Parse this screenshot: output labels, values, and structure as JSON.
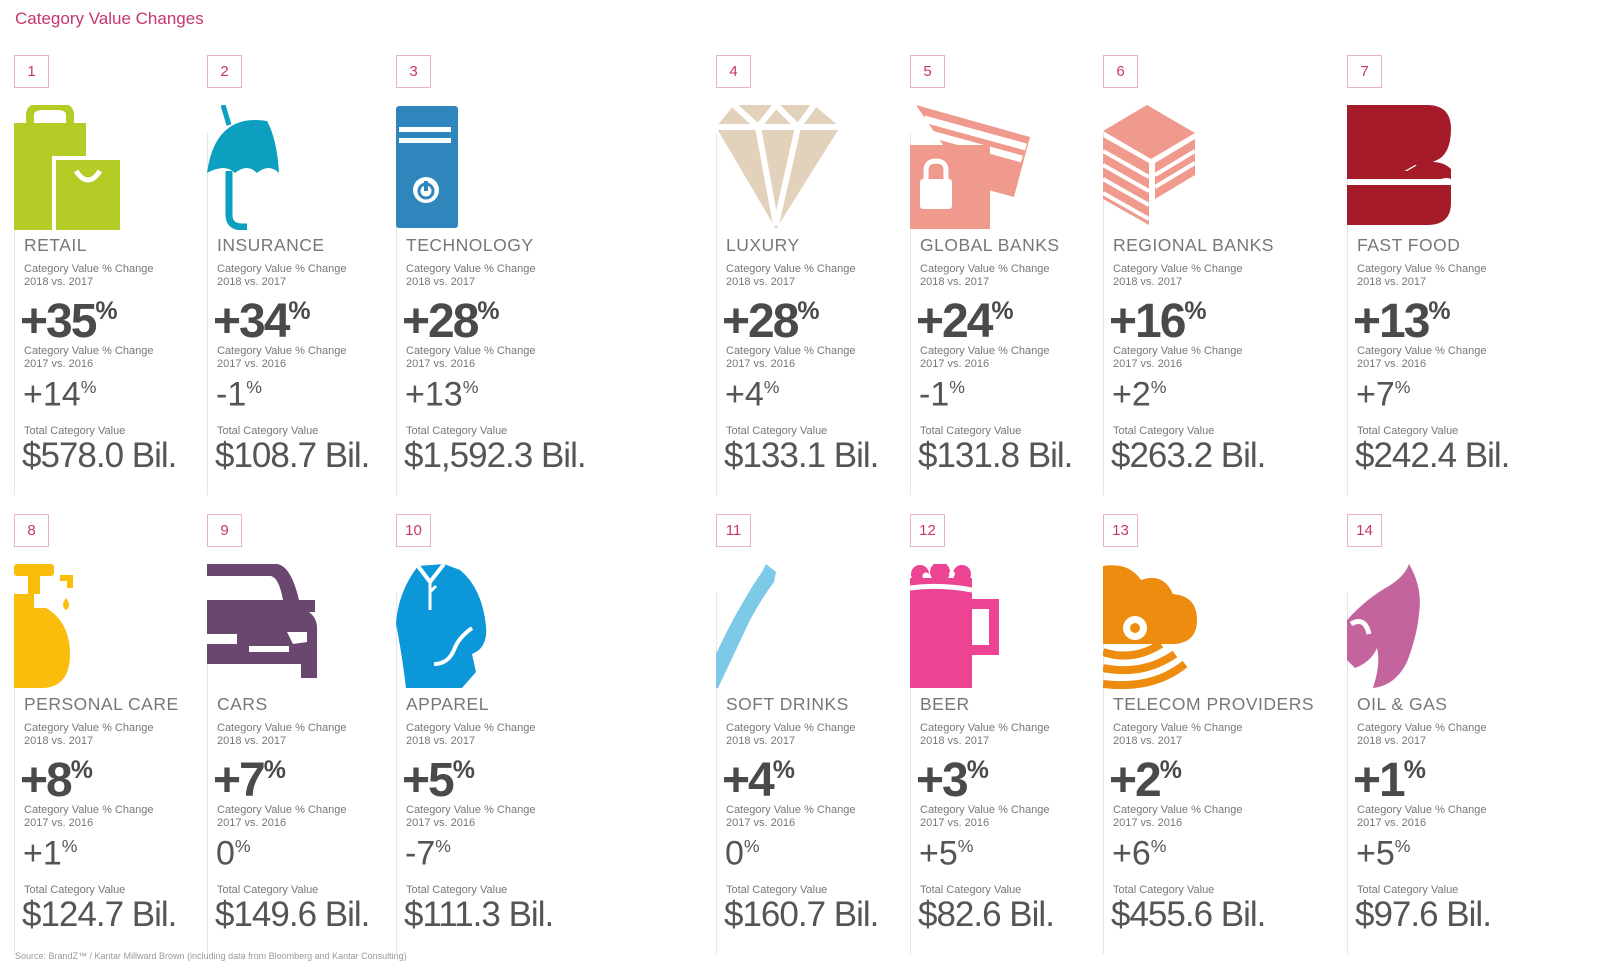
{
  "title": "Category Value Changes",
  "source": "Source: BrandZ™ / Kantar Millward Brown  (including data from Bloomberg and Kantar Consulting)",
  "labels": {
    "change_a_line1": "Category Value % Change",
    "change_a_line2": "2018 vs. 2017",
    "change_b_line1": "Category Value % Change",
    "change_b_line2": "2017 vs. 2016",
    "total": "Total Category Value",
    "percent_sign": "%"
  },
  "categories": [
    {
      "rank": "1",
      "name": "RETAIL",
      "change_2018": "+35",
      "change_2017": "+14",
      "total": "$578.0 Bil.",
      "icon": "shopping-bags-icon",
      "color": "#b5cc26"
    },
    {
      "rank": "2",
      "name": "INSURANCE",
      "change_2018": "+34",
      "change_2017": "-1",
      "total": "$108.7 Bil.",
      "icon": "umbrella-icon",
      "color": "#0d9fbf"
    },
    {
      "rank": "3",
      "name": "TECHNOLOGY",
      "change_2018": "+28",
      "change_2017": "+13",
      "total": "$1,592.3 Bil.",
      "icon": "computer-tower-icon",
      "color": "#2e86bd"
    },
    {
      "rank": "4",
      "name": "LUXURY",
      "change_2018": "+28",
      "change_2017": "+4",
      "total": "$133.1 Bil.",
      "icon": "diamond-icon",
      "color": "#e2d2bc"
    },
    {
      "rank": "5",
      "name": "GLOBAL BANKS",
      "change_2018": "+24",
      "change_2017": "-1",
      "total": "$131.8 Bil.",
      "icon": "card-lock-icon",
      "color": "#ef9a8c"
    },
    {
      "rank": "6",
      "name": "REGIONAL BANKS",
      "change_2018": "+16",
      "change_2017": "+2",
      "total": "$263.2 Bil.",
      "icon": "bank-building-icon",
      "color": "#ef9a8c"
    },
    {
      "rank": "7",
      "name": "FAST FOOD",
      "change_2018": "+13",
      "change_2017": "+7",
      "total": "$242.4 Bil.",
      "icon": "burger-icon",
      "color": "#a51b2a"
    },
    {
      "rank": "8",
      "name": "PERSONAL CARE",
      "change_2018": "+8",
      "change_2017": "+1",
      "total": "$124.7 Bil.",
      "icon": "soap-bottle-icon",
      "color": "#fbbd0c"
    },
    {
      "rank": "9",
      "name": "CARS",
      "change_2018": "+7",
      "change_2017": "0",
      "total": "$149.6 Bil.",
      "icon": "car-icon",
      "color": "#6a476f"
    },
    {
      "rank": "10",
      "name": "APPAREL",
      "change_2018": "+5",
      "change_2017": "-7",
      "total": "$111.3 Bil.",
      "icon": "shirt-icon",
      "color": "#0c97d8"
    },
    {
      "rank": "11",
      "name": "SOFT DRINKS",
      "change_2018": "+4",
      "change_2017": "0",
      "total": "$160.7 Bil.",
      "icon": "bottle-icon",
      "color": "#7dcae8"
    },
    {
      "rank": "12",
      "name": "BEER",
      "change_2018": "+3",
      "change_2017": "+5",
      "total": "$82.6 Bil.",
      "icon": "beer-mug-icon",
      "color": "#ec4393"
    },
    {
      "rank": "13",
      "name": "TELECOM PROVIDERS",
      "change_2018": "+2",
      "change_2017": "+6",
      "total": "$455.6 Bil.",
      "icon": "cloud-signal-icon",
      "color": "#ee8c0f"
    },
    {
      "rank": "14",
      "name": "OIL & GAS",
      "change_2018": "+1",
      "change_2017": "+5",
      "total": "$97.6 Bil.",
      "icon": "flame-icon",
      "color": "#c4649c"
    }
  ]
}
